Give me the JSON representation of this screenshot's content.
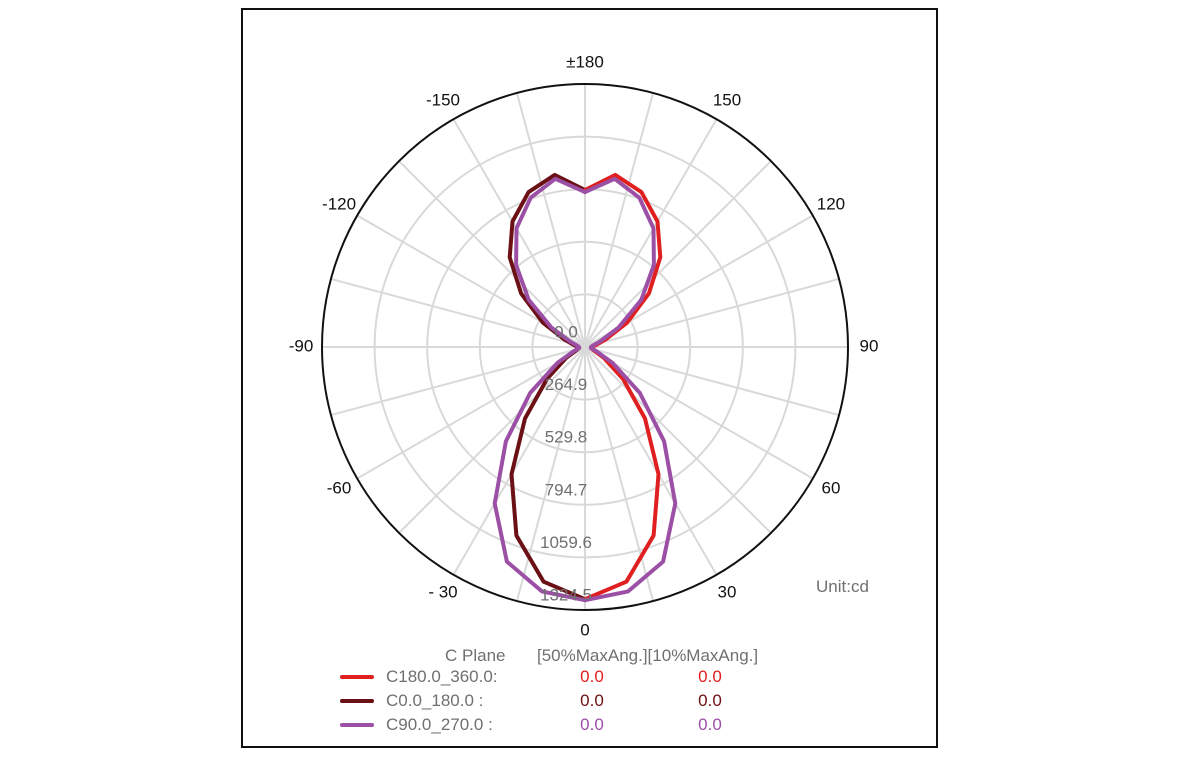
{
  "chart_data": {
    "type": "polar",
    "unit_label": "Unit:cd",
    "angle_labels": [
      "±180",
      "150",
      "120",
      "90",
      "60",
      "30",
      "0",
      "- 30",
      "-60",
      "-90",
      "-120",
      "-150"
    ],
    "angle_values": [
      180,
      150,
      120,
      90,
      60,
      30,
      0,
      -30,
      -60,
      -90,
      -120,
      -150
    ],
    "radial_ticks": [
      "0.0",
      "264.9",
      "529.8",
      "794.7",
      "1059.6",
      "1324.5"
    ],
    "radial_tick_values": [
      0,
      264.9,
      529.8,
      794.7,
      1059.6,
      1324.5
    ],
    "r_max": 1324.5,
    "grid": true,
    "grid_angle_step": 15,
    "grid_rings": 5,
    "theta": [
      0,
      10,
      20,
      30,
      40,
      50,
      60,
      70,
      80,
      90,
      100,
      110,
      120,
      130,
      140,
      150,
      160,
      170,
      180
    ],
    "series": [
      {
        "name": "C180.0_360.0:",
        "color": "#e02020",
        "side": "right",
        "r": [
          1270,
          1200,
          1010,
          740,
          470,
          250,
          110,
          45,
          30,
          35,
          55,
          110,
          245,
          420,
          590,
          730,
          830,
          880,
          790
        ]
      },
      {
        "name": "C0.0_180.0  :",
        "color": "#6b1014",
        "side": "left",
        "r": [
          1270,
          1200,
          1010,
          740,
          470,
          250,
          110,
          45,
          30,
          35,
          55,
          110,
          245,
          420,
          590,
          730,
          830,
          880,
          790
        ]
      },
      {
        "name": "C90.0_270.0 :",
        "color": "#9b4fa5",
        "side": "both",
        "r": [
          1275,
          1250,
          1150,
          910,
          620,
          360,
          160,
          60,
          30,
          30,
          40,
          80,
          195,
          370,
          540,
          690,
          800,
          860,
          780
        ]
      }
    ]
  },
  "legend": {
    "header_plane": "C Plane",
    "header_angles": "[50%MaxAng.][10%MaxAng.]",
    "rows": [
      {
        "name": "C180.0_360.0:",
        "v50": "0.0",
        "v10": "0.0",
        "color": "#e02020"
      },
      {
        "name": "C0.0_180.0  :",
        "v50": "0.0",
        "v10": "0.0",
        "color": "#6b1014"
      },
      {
        "name": "C90.0_270.0 :",
        "v50": "0.0",
        "v10": "0.0",
        "color": "#9b4fa5"
      }
    ]
  }
}
